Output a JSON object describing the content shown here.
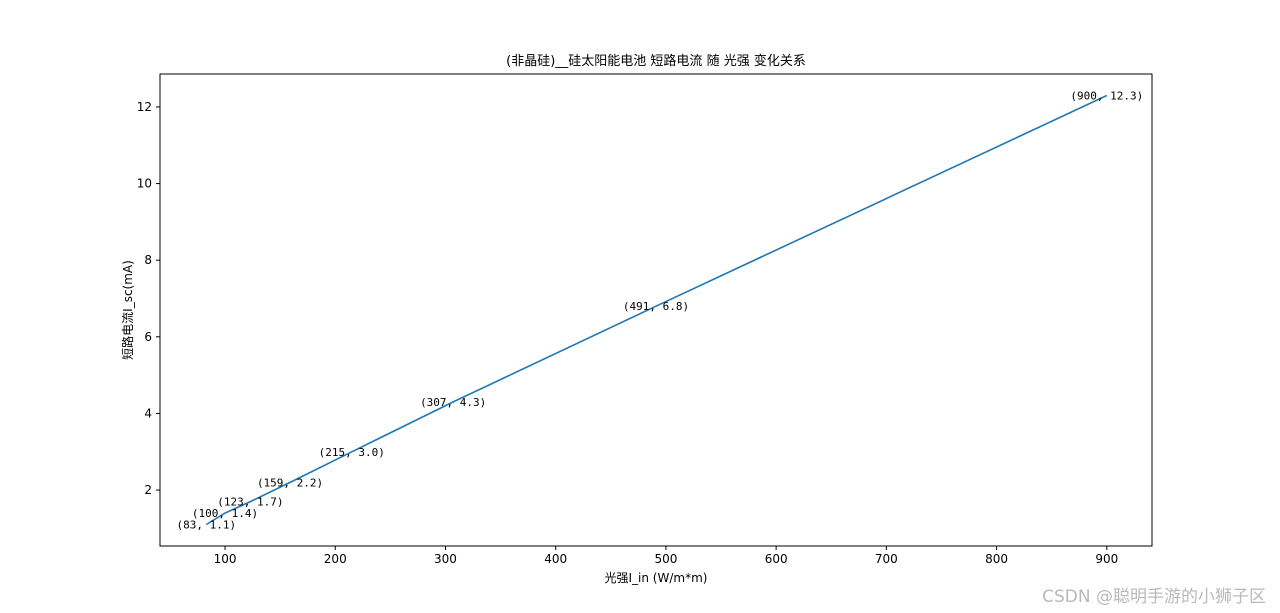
{
  "chart_data": {
    "type": "line",
    "title": "(非晶硅)__硅太阳能电池 短路电流 随 光强 变化关系",
    "xlabel": "光强I_in (W/m*m)",
    "ylabel": "短路电流I_sc(mA)",
    "xlim": [
      41,
      941
    ],
    "ylim": [
      0.54,
      12.86
    ],
    "xticks": [
      100,
      200,
      300,
      400,
      500,
      600,
      700,
      800,
      900
    ],
    "yticks": [
      2,
      4,
      6,
      8,
      10,
      12
    ],
    "grid": false,
    "series": [
      {
        "color": "#1f77b4",
        "x": [
          83,
          100,
          123,
          159,
          215,
          307,
          491,
          900
        ],
        "y": [
          1.1,
          1.4,
          1.7,
          2.2,
          3.0,
          4.3,
          6.8,
          12.3
        ]
      }
    ],
    "annotations": [
      "(83, 1.1)",
      "(100, 1.4)",
      "(123, 1.7)",
      "(159, 2.2)",
      "(215, 3.0)",
      "(307, 4.3)",
      "(491, 6.8)",
      "(900, 12.3)"
    ]
  },
  "watermark": "CSDN @聪明手游的小狮子区"
}
